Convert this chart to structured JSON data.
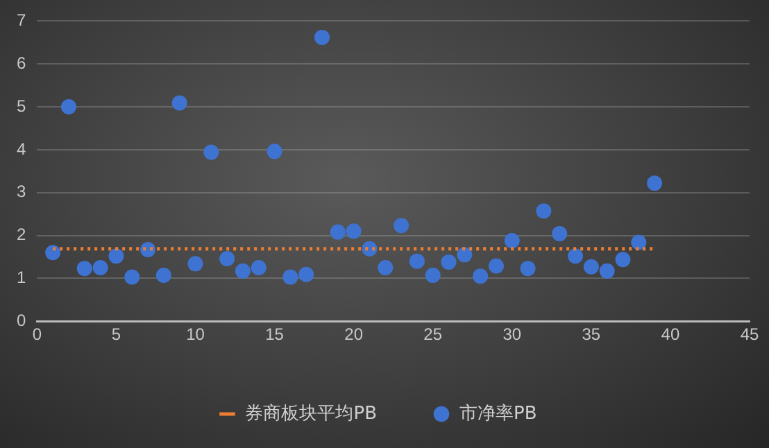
{
  "chart_data": {
    "type": "scatter",
    "xlim": [
      0,
      45
    ],
    "xticks": [
      0,
      5,
      10,
      15,
      20,
      25,
      30,
      35,
      40,
      45
    ],
    "ylim": [
      0,
      7
    ],
    "yticks": [
      0,
      1,
      2,
      3,
      4,
      5,
      6,
      7
    ],
    "grid": "y",
    "legend": "bottom",
    "series": [
      {
        "name": "券商板块平均PB",
        "type": "line",
        "color": "#ed7d31",
        "line_style": "dotted",
        "marker": "none",
        "x": [
          1,
          39
        ],
        "values": [
          1.69,
          1.69
        ]
      },
      {
        "name": "市净率PB",
        "type": "scatter",
        "color": "#3f73d2",
        "marker": "circle",
        "x": [
          1,
          2,
          3,
          4,
          5,
          6,
          7,
          8,
          9,
          10,
          11,
          12,
          13,
          14,
          15,
          16,
          17,
          18,
          19,
          20,
          21,
          22,
          23,
          24,
          25,
          26,
          27,
          28,
          29,
          30,
          31,
          32,
          33,
          34,
          35,
          36,
          37,
          38,
          39
        ],
        "values": [
          1.6,
          5.0,
          1.23,
          1.25,
          1.52,
          1.03,
          1.67,
          1.07,
          5.09,
          1.34,
          3.94,
          1.46,
          1.17,
          1.25,
          3.96,
          1.03,
          1.09,
          6.62,
          2.08,
          2.1,
          1.69,
          1.25,
          2.23,
          1.4,
          1.07,
          1.38,
          1.55,
          1.05,
          1.29,
          1.88,
          1.23,
          2.57,
          2.04,
          1.52,
          1.27,
          1.17,
          1.44,
          1.84,
          3.22
        ]
      }
    ]
  }
}
